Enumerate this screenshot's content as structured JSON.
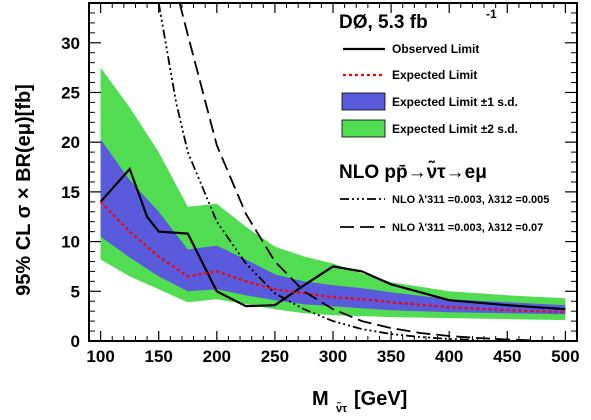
{
  "chart_data": {
    "type": "line",
    "xlabel": "M",
    "xlabel_sub": "ν̃τ",
    "xlabel_unit": "[GeV]",
    "ylabel": "95% CL σ × BR(eμ)[fb]",
    "xlim": [
      90,
      510
    ],
    "ylim": [
      0,
      34
    ],
    "x_ticks": [
      100,
      150,
      200,
      250,
      300,
      350,
      400,
      450,
      500
    ],
    "y_ticks": [
      0,
      5,
      10,
      15,
      20,
      25,
      30
    ],
    "grid": false,
    "legend_position": "top-right",
    "experiment_label": "DØ, 5.3 fb",
    "experiment_label_sup": "-1",
    "process_label": "NLO pp̄→ν̃τ→eμ",
    "colors": {
      "band_2sigma": "#52dc52",
      "band_1sigma": "#5a5adc",
      "observed": "#000000",
      "expected": "#ff0000"
    },
    "legend": [
      {
        "key": "observed",
        "label": "Observed Limit"
      },
      {
        "key": "expected",
        "label": "Expected Limit"
      },
      {
        "key": "band_1sigma",
        "label": "Expected Limit ±1 s.d."
      },
      {
        "key": "band_2sigma",
        "label": "Expected Limit ±2 s.d."
      }
    ],
    "theory_legend": [
      {
        "key": "nlo_1",
        "label": "NLO  λ'311 =0.003, λ312 =0.005"
      },
      {
        "key": "nlo_2",
        "label": "NLO  λ'311 =0.003, λ312 =0.07"
      }
    ],
    "x": [
      100,
      125,
      150,
      175,
      200,
      225,
      250,
      275,
      300,
      325,
      350,
      400,
      450,
      500
    ],
    "band_2sigma": {
      "low": [
        8.2,
        6.5,
        5.2,
        3.9,
        4.2,
        3.7,
        3.2,
        2.8,
        2.6,
        2.5,
        2.4,
        2.3,
        2.2,
        2.1
      ],
      "high": [
        27.5,
        23.5,
        19.0,
        13.5,
        13.8,
        11.5,
        9.5,
        8.5,
        7.8,
        6.8,
        5.9,
        5.0,
        4.6,
        4.3
      ]
    },
    "band_1sigma": {
      "low": [
        10.5,
        8.4,
        6.5,
        5.0,
        5.2,
        4.6,
        4.1,
        3.7,
        3.5,
        3.3,
        3.1,
        2.9,
        2.8,
        2.7
      ],
      "high": [
        20.3,
        16.2,
        13.0,
        9.2,
        9.6,
        8.2,
        6.7,
        6.0,
        5.6,
        5.3,
        4.9,
        4.2,
        3.9,
        3.6
      ]
    },
    "series": [
      {
        "name": "Observed Limit",
        "x": [
          100,
          125,
          140,
          150,
          175,
          200,
          225,
          250,
          275,
          300,
          325,
          350,
          400,
          450,
          500
        ],
        "values": [
          14.0,
          17.3,
          12.5,
          11.0,
          10.8,
          5.0,
          3.5,
          3.6,
          5.6,
          7.5,
          7.0,
          5.7,
          4.1,
          3.6,
          3.2
        ]
      },
      {
        "name": "Expected Limit",
        "x": [
          100,
          125,
          150,
          175,
          200,
          225,
          250,
          275,
          300,
          325,
          350,
          400,
          450,
          500
        ],
        "values": [
          14.0,
          11.0,
          8.5,
          6.5,
          7.0,
          6.0,
          5.2,
          4.8,
          4.4,
          4.2,
          3.9,
          3.4,
          3.1,
          2.9
        ]
      },
      {
        "name": "NLO λ'311=0.003, λ312=0.005",
        "x": [
          150,
          165,
          175,
          200,
          225,
          250,
          275,
          300,
          325,
          350,
          375,
          400,
          425
        ],
        "values": [
          34.0,
          24.0,
          19.0,
          12.0,
          7.8,
          4.8,
          3.2,
          2.0,
          1.2,
          0.7,
          0.4,
          0.2,
          0.1
        ]
      },
      {
        "name": "NLO λ'311=0.003, λ312=0.07",
        "x": [
          168,
          175,
          200,
          225,
          250,
          275,
          300,
          325,
          350,
          375,
          400,
          425,
          450,
          475
        ],
        "values": [
          34.0,
          30.8,
          19.7,
          12.8,
          8.0,
          5.0,
          3.2,
          2.0,
          1.3,
          0.8,
          0.5,
          0.3,
          0.15,
          0.05
        ]
      }
    ]
  }
}
